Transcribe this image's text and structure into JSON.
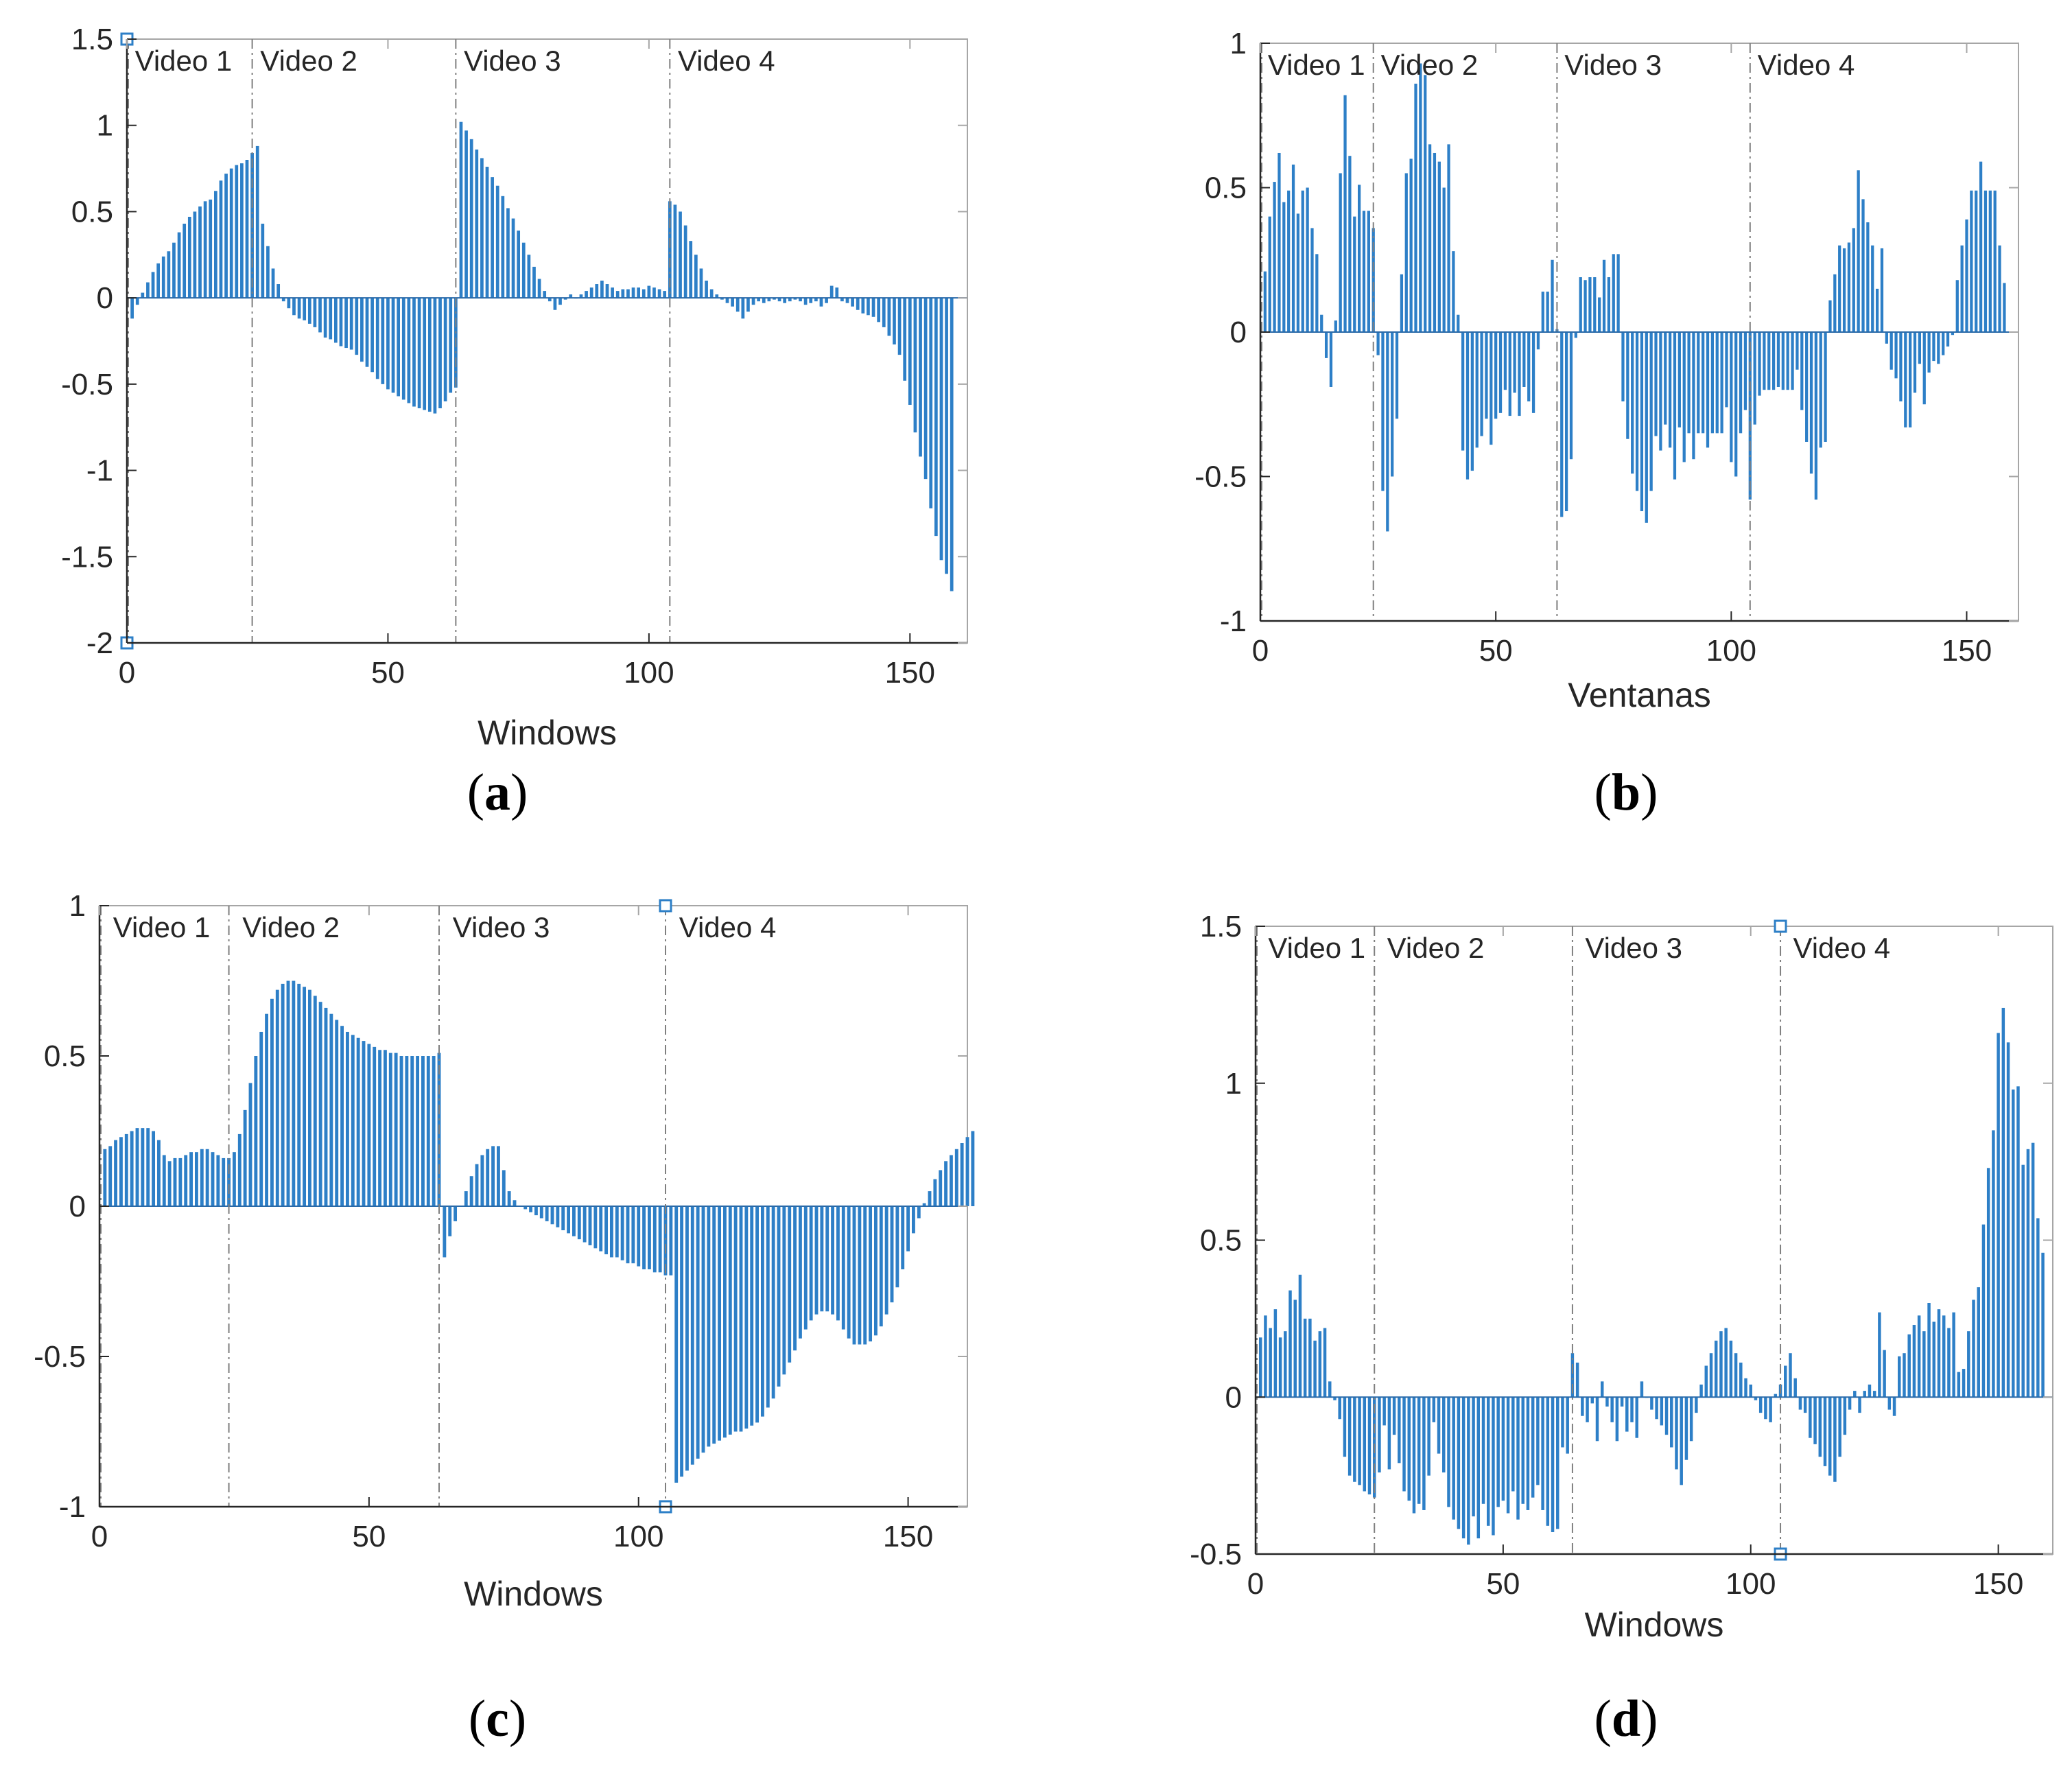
{
  "colors": {
    "bar": "#2d7fc7",
    "axis": "#262626",
    "frame": "#a6a6a6",
    "separator": "#7f7f7f",
    "marker": "#2d7fc7"
  },
  "chart_data": [
    {
      "type": "bar",
      "panel": "a",
      "caption": {
        "open": "(",
        "letter": "a",
        "close": ")"
      },
      "xlabel": "Windows",
      "ylabel": "",
      "xlim": [
        0,
        161
      ],
      "ylim": [
        -2,
        1.5
      ],
      "xticks": [
        {
          "value": 0,
          "label": "0"
        },
        {
          "value": 50,
          "label": "50"
        },
        {
          "value": 100,
          "label": "100"
        },
        {
          "value": 150,
          "label": "150"
        }
      ],
      "yticks": [
        {
          "value": 1.5,
          "label": "1.5"
        },
        {
          "value": 1,
          "label": "1"
        },
        {
          "value": 0.5,
          "label": "0.5"
        },
        {
          "value": 0,
          "label": "0"
        },
        {
          "value": -0.5,
          "label": "-0.5"
        },
        {
          "value": -1,
          "label": "-1"
        },
        {
          "value": -1.5,
          "label": "-1.5"
        },
        {
          "value": -2,
          "label": "-2"
        }
      ],
      "video_boundaries": [
        24,
        63,
        104
      ],
      "video_labels": [
        {
          "x": 1,
          "text": "Video 1"
        },
        {
          "x": 25,
          "text": "Video 2"
        },
        {
          "x": 64,
          "text": "Video 3"
        },
        {
          "x": 105,
          "text": "Video 4"
        }
      ],
      "markers": [
        {
          "x": 0,
          "y": 1.5
        },
        {
          "x": 0,
          "y": -2
        }
      ],
      "x_start": 1,
      "values": [
        -0.12,
        -0.04,
        0.03,
        0.09,
        0.15,
        0.2,
        0.24,
        0.27,
        0.32,
        0.38,
        0.43,
        0.47,
        0.5,
        0.53,
        0.56,
        0.57,
        0.62,
        0.68,
        0.72,
        0.75,
        0.77,
        0.78,
        0.8,
        0.84,
        0.88,
        0.43,
        0.3,
        0.17,
        0.08,
        -0.02,
        -0.06,
        -0.1,
        -0.12,
        -0.13,
        -0.15,
        -0.17,
        -0.2,
        -0.23,
        -0.24,
        -0.26,
        -0.28,
        -0.29,
        -0.3,
        -0.33,
        -0.37,
        -0.4,
        -0.43,
        -0.47,
        -0.5,
        -0.53,
        -0.55,
        -0.57,
        -0.59,
        -0.61,
        -0.63,
        -0.64,
        -0.65,
        -0.66,
        -0.67,
        -0.64,
        -0.6,
        -0.55,
        -0.52,
        1.02,
        0.97,
        0.92,
        0.86,
        0.81,
        0.76,
        0.7,
        0.65,
        0.59,
        0.52,
        0.46,
        0.39,
        0.32,
        0.25,
        0.18,
        0.11,
        0.04,
        -0.02,
        -0.07,
        -0.04,
        -0.01,
        0.02,
        0.0,
        0.02,
        0.04,
        0.06,
        0.08,
        0.1,
        0.08,
        0.06,
        0.04,
        0.05,
        0.05,
        0.06,
        0.06,
        0.05,
        0.07,
        0.06,
        0.05,
        0.04,
        0.56,
        0.54,
        0.5,
        0.42,
        0.33,
        0.25,
        0.17,
        0.1,
        0.05,
        0.02,
        -0.01,
        -0.03,
        -0.05,
        -0.08,
        -0.12,
        -0.08,
        -0.04,
        -0.02,
        -0.03,
        -0.02,
        -0.01,
        -0.02,
        -0.03,
        -0.02,
        -0.01,
        -0.02,
        -0.04,
        -0.03,
        -0.02,
        -0.05,
        -0.03,
        0.07,
        0.06,
        -0.02,
        -0.03,
        -0.05,
        -0.07,
        -0.09,
        -0.1,
        -0.11,
        -0.14,
        -0.17,
        -0.22,
        -0.27,
        -0.33,
        -0.48,
        -0.62,
        -0.78,
        -0.92,
        -1.05,
        -1.22,
        -1.38,
        -1.52,
        -1.6,
        -1.7
      ]
    },
    {
      "type": "bar",
      "panel": "b",
      "caption": {
        "open": "(",
        "letter": "b",
        "close": ")"
      },
      "xlabel": "Ventanas",
      "ylabel": "",
      "xlim": [
        0,
        161
      ],
      "ylim": [
        -1,
        1
      ],
      "xticks": [
        {
          "value": 0,
          "label": "0"
        },
        {
          "value": 50,
          "label": "50"
        },
        {
          "value": 100,
          "label": "100"
        },
        {
          "value": 150,
          "label": "150"
        }
      ],
      "yticks": [
        {
          "value": 1,
          "label": "1"
        },
        {
          "value": 0.5,
          "label": "0.5"
        },
        {
          "value": 0,
          "label": "0"
        },
        {
          "value": -0.5,
          "label": "-0.5"
        },
        {
          "value": -1,
          "label": "-1"
        }
      ],
      "video_boundaries": [
        24,
        63,
        104
      ],
      "video_labels": [
        {
          "x": 1,
          "text": "Video 1"
        },
        {
          "x": 25,
          "text": "Video 2"
        },
        {
          "x": 64,
          "text": "Video 3"
        },
        {
          "x": 105,
          "text": "Video 4"
        }
      ],
      "markers": [],
      "x_start": 1,
      "values": [
        0.21,
        0.4,
        0.52,
        0.62,
        0.45,
        0.49,
        0.58,
        0.41,
        0.49,
        0.5,
        0.36,
        0.27,
        0.06,
        -0.09,
        -0.19,
        0.04,
        0.55,
        0.82,
        0.61,
        0.4,
        0.51,
        0.42,
        0.42,
        0.36,
        -0.08,
        -0.55,
        -0.69,
        -0.5,
        -0.3,
        0.2,
        0.55,
        0.6,
        0.86,
        0.93,
        0.89,
        0.65,
        0.62,
        0.59,
        0.5,
        0.65,
        0.28,
        0.06,
        -0.41,
        -0.51,
        -0.48,
        -0.4,
        -0.36,
        -0.3,
        -0.39,
        -0.3,
        -0.28,
        -0.2,
        -0.29,
        -0.21,
        -0.29,
        -0.19,
        -0.24,
        -0.28,
        -0.06,
        0.14,
        0.14,
        0.25,
        0.01,
        -0.64,
        -0.62,
        -0.44,
        -0.02,
        0.19,
        0.18,
        0.19,
        0.19,
        0.12,
        0.25,
        0.19,
        0.27,
        0.27,
        -0.24,
        -0.37,
        -0.49,
        -0.55,
        -0.62,
        -0.66,
        -0.55,
        -0.36,
        -0.41,
        -0.32,
        -0.4,
        -0.51,
        -0.33,
        -0.45,
        -0.35,
        -0.44,
        -0.35,
        -0.35,
        -0.4,
        -0.35,
        -0.35,
        -0.35,
        -0.26,
        -0.45,
        -0.5,
        -0.35,
        -0.27,
        -0.58,
        -0.32,
        -0.22,
        -0.2,
        -0.2,
        -0.2,
        -0.19,
        -0.2,
        -0.2,
        -0.2,
        -0.13,
        -0.27,
        -0.38,
        -0.49,
        -0.58,
        -0.4,
        -0.38,
        0.11,
        0.2,
        0.3,
        0.29,
        0.31,
        0.36,
        0.56,
        0.46,
        0.38,
        0.3,
        0.15,
        0.29,
        -0.04,
        -0.13,
        -0.16,
        -0.24,
        -0.33,
        -0.33,
        -0.21,
        -0.11,
        -0.25,
        -0.14,
        -0.1,
        -0.11,
        -0.08,
        -0.05,
        -0.01,
        0.18,
        0.3,
        0.39,
        0.49,
        0.49,
        0.59,
        0.49,
        0.49,
        0.49,
        0.3,
        0.17
      ]
    },
    {
      "type": "bar",
      "panel": "c",
      "caption": {
        "open": "(",
        "letter": "c",
        "close": ")"
      },
      "xlabel": "Windows",
      "ylabel": "",
      "xlim": [
        0,
        161
      ],
      "ylim": [
        -1,
        1
      ],
      "xticks": [
        {
          "value": 0,
          "label": "0"
        },
        {
          "value": 50,
          "label": "50"
        },
        {
          "value": 100,
          "label": "100"
        },
        {
          "value": 150,
          "label": "150"
        }
      ],
      "yticks": [
        {
          "value": 1,
          "label": "1"
        },
        {
          "value": 0.5,
          "label": "0.5"
        },
        {
          "value": 0,
          "label": "0"
        },
        {
          "value": -0.5,
          "label": "-0.5"
        },
        {
          "value": -1,
          "label": "-1"
        }
      ],
      "video_boundaries": [
        24,
        63,
        105
      ],
      "video_labels": [
        {
          "x": 2,
          "text": "Video 1"
        },
        {
          "x": 26,
          "text": "Video 2"
        },
        {
          "x": 65,
          "text": "Video 3"
        },
        {
          "x": 107,
          "text": "Video 4"
        }
      ],
      "markers": [
        {
          "x": 105,
          "y": 1
        },
        {
          "x": 105,
          "y": -1
        }
      ],
      "x_start": 1,
      "values": [
        0.19,
        0.2,
        0.22,
        0.23,
        0.24,
        0.25,
        0.26,
        0.26,
        0.26,
        0.25,
        0.22,
        0.17,
        0.15,
        0.16,
        0.16,
        0.17,
        0.18,
        0.18,
        0.19,
        0.19,
        0.18,
        0.17,
        0.16,
        0.16,
        0.18,
        0.24,
        0.32,
        0.41,
        0.5,
        0.58,
        0.64,
        0.69,
        0.72,
        0.74,
        0.75,
        0.75,
        0.74,
        0.73,
        0.72,
        0.7,
        0.68,
        0.66,
        0.64,
        0.62,
        0.6,
        0.58,
        0.57,
        0.56,
        0.55,
        0.54,
        0.53,
        0.52,
        0.52,
        0.51,
        0.51,
        0.5,
        0.5,
        0.5,
        0.5,
        0.5,
        0.5,
        0.5,
        0.51,
        -0.17,
        -0.1,
        -0.05,
        0.0,
        0.05,
        0.1,
        0.14,
        0.17,
        0.19,
        0.2,
        0.2,
        0.12,
        0.05,
        0.02,
        -0.0,
        -0.01,
        -0.02,
        -0.03,
        -0.04,
        -0.05,
        -0.06,
        -0.07,
        -0.08,
        -0.09,
        -0.1,
        -0.11,
        -0.12,
        -0.13,
        -0.14,
        -0.15,
        -0.16,
        -0.17,
        -0.17,
        -0.18,
        -0.19,
        -0.19,
        -0.2,
        -0.21,
        -0.21,
        -0.22,
        -0.22,
        -0.23,
        -0.23,
        -0.92,
        -0.9,
        -0.88,
        -0.86,
        -0.84,
        -0.82,
        -0.8,
        -0.79,
        -0.78,
        -0.77,
        -0.76,
        -0.75,
        -0.75,
        -0.74,
        -0.73,
        -0.72,
        -0.7,
        -0.67,
        -0.64,
        -0.6,
        -0.56,
        -0.52,
        -0.48,
        -0.44,
        -0.41,
        -0.38,
        -0.36,
        -0.35,
        -0.35,
        -0.36,
        -0.38,
        -0.41,
        -0.44,
        -0.46,
        -0.46,
        -0.46,
        -0.45,
        -0.43,
        -0.4,
        -0.36,
        -0.32,
        -0.27,
        -0.21,
        -0.15,
        -0.09,
        -0.04,
        0.01,
        0.05,
        0.09,
        0.12,
        0.15,
        0.17,
        0.19,
        0.21,
        0.23,
        0.25
      ]
    },
    {
      "type": "bar",
      "panel": "d",
      "caption": {
        "open": "(",
        "letter": "d",
        "close": ")"
      },
      "xlabel": "Windows",
      "ylabel": "",
      "xlim": [
        0,
        161
      ],
      "ylim": [
        -0.5,
        1.5
      ],
      "xticks": [
        {
          "value": 0,
          "label": "0"
        },
        {
          "value": 50,
          "label": "50"
        },
        {
          "value": 100,
          "label": "100"
        },
        {
          "value": 150,
          "label": "150"
        }
      ],
      "yticks": [
        {
          "value": 1.5,
          "label": "1.5"
        },
        {
          "value": 1,
          "label": "1"
        },
        {
          "value": 0.5,
          "label": "0.5"
        },
        {
          "value": 0,
          "label": "0"
        },
        {
          "value": -0.5,
          "label": "-0.5"
        }
      ],
      "video_boundaries": [
        24,
        64,
        106
      ],
      "video_labels": [
        {
          "x": 2,
          "text": "Video 1"
        },
        {
          "x": 26,
          "text": "Video 2"
        },
        {
          "x": 66,
          "text": "Video 3"
        },
        {
          "x": 108,
          "text": "Video 4"
        }
      ],
      "markers": [
        {
          "x": 106,
          "y": 1.5
        },
        {
          "x": 106,
          "y": -0.5
        }
      ],
      "x_start": 1,
      "values": [
        0.19,
        0.26,
        0.22,
        0.28,
        0.19,
        0.21,
        0.34,
        0.31,
        0.39,
        0.25,
        0.25,
        0.18,
        0.21,
        0.22,
        0.05,
        -0.01,
        -0.07,
        -0.19,
        -0.25,
        -0.27,
        -0.28,
        -0.3,
        -0.31,
        -0.32,
        -0.24,
        -0.09,
        -0.23,
        -0.12,
        -0.21,
        -0.3,
        -0.33,
        -0.37,
        -0.34,
        -0.36,
        -0.25,
        -0.08,
        -0.18,
        -0.24,
        -0.35,
        -0.39,
        -0.42,
        -0.45,
        -0.47,
        -0.38,
        -0.45,
        -0.34,
        -0.41,
        -0.44,
        -0.35,
        -0.33,
        -0.37,
        -0.3,
        -0.39,
        -0.34,
        -0.36,
        -0.32,
        -0.28,
        -0.36,
        -0.41,
        -0.43,
        -0.42,
        -0.16,
        -0.18,
        0.14,
        0.11,
        -0.06,
        -0.08,
        -0.02,
        -0.14,
        0.05,
        -0.03,
        -0.08,
        -0.14,
        -0.03,
        -0.11,
        -0.08,
        -0.13,
        0.05,
        0.0,
        -0.04,
        -0.07,
        -0.09,
        -0.12,
        -0.16,
        -0.23,
        -0.28,
        -0.2,
        -0.14,
        -0.05,
        0.04,
        0.1,
        0.14,
        0.18,
        0.21,
        0.22,
        0.18,
        0.14,
        0.11,
        0.06,
        0.04,
        -0.01,
        -0.05,
        -0.07,
        -0.08,
        0.01,
        0.04,
        0.1,
        0.14,
        0.06,
        -0.04,
        -0.05,
        -0.13,
        -0.15,
        -0.19,
        -0.22,
        -0.25,
        -0.27,
        -0.19,
        -0.12,
        -0.04,
        0.02,
        -0.05,
        0.02,
        0.04,
        0.02,
        0.27,
        0.15,
        -0.04,
        -0.06,
        0.13,
        0.14,
        0.2,
        0.23,
        0.26,
        0.21,
        0.3,
        0.24,
        0.28,
        0.26,
        0.22,
        0.27,
        0.08,
        0.09,
        0.21,
        0.31,
        0.35,
        0.55,
        0.73,
        0.85,
        1.16,
        1.24,
        1.13,
        0.98,
        0.99,
        0.74,
        0.79,
        0.81,
        0.57,
        0.46
      ]
    }
  ]
}
